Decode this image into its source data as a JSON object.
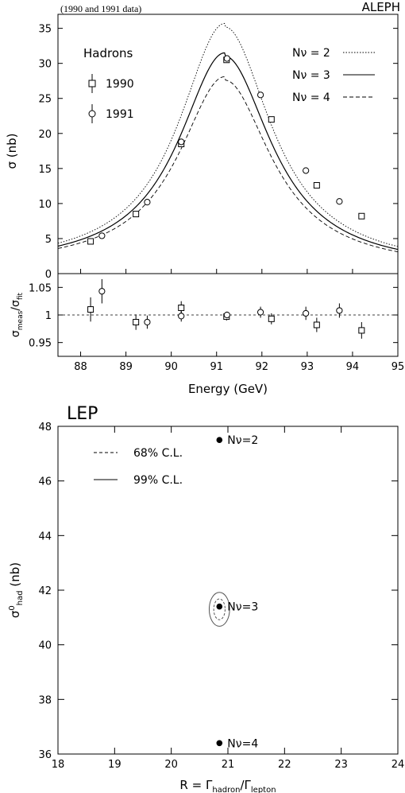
{
  "header": {
    "note": "(1990 and 1991 data)",
    "experiment": "ALEPH"
  },
  "chart_data": [
    {
      "type": "line",
      "panel": "cross-section",
      "experiment_label": "ALEPH",
      "inset_title": "Hadrons",
      "xlabel": "Energy (GeV)",
      "ylabel": "σ (nb)",
      "xlim": [
        87.5,
        95
      ],
      "ylim": [
        0,
        37
      ],
      "yticks": [
        0,
        5,
        10,
        15,
        20,
        25,
        30,
        35
      ],
      "xticks": [
        88,
        89,
        90,
        91,
        92,
        93,
        94,
        95
      ],
      "curves": [
        {
          "name": "Nν = 2",
          "style": "dotted",
          "peak": 34.8
        },
        {
          "name": "Nν = 3",
          "style": "solid",
          "peak": 30.6
        },
        {
          "name": "Nν = 4",
          "style": "dashed",
          "peak": 27.2
        }
      ],
      "series": [
        {
          "name": "1990",
          "marker": "square",
          "points": [
            {
              "x": 88.22,
              "y": 4.6
            },
            {
              "x": 89.22,
              "y": 8.5
            },
            {
              "x": 90.22,
              "y": 18.5
            },
            {
              "x": 91.22,
              "y": 30.5
            },
            {
              "x": 92.21,
              "y": 22.0
            },
            {
              "x": 93.21,
              "y": 12.6
            },
            {
              "x": 94.2,
              "y": 8.2
            }
          ]
        },
        {
          "name": "1991",
          "marker": "circle",
          "points": [
            {
              "x": 88.47,
              "y": 5.4
            },
            {
              "x": 89.47,
              "y": 10.2
            },
            {
              "x": 90.22,
              "y": 18.8
            },
            {
              "x": 91.23,
              "y": 30.7
            },
            {
              "x": 91.97,
              "y": 25.5
            },
            {
              "x": 92.97,
              "y": 14.7
            },
            {
              "x": 93.71,
              "y": 10.3
            }
          ]
        }
      ]
    },
    {
      "type": "scatter",
      "panel": "ratio",
      "ylabel": "σmeas/σfit",
      "xlabel": "Energy (GeV)",
      "xlim": [
        87.5,
        95
      ],
      "ylim": [
        0.925,
        1.075
      ],
      "yticks": [
        0.95,
        1,
        1.05
      ],
      "ytick_labels": [
        "0.95",
        "1",
        "1.05"
      ],
      "xticks": [
        88,
        89,
        90,
        91,
        92,
        93,
        94,
        95
      ],
      "reference_line": 1,
      "series": [
        {
          "name": "1990",
          "marker": "square",
          "points": [
            {
              "x": 88.22,
              "y": 1.01,
              "err": 0.022
            },
            {
              "x": 89.22,
              "y": 0.987,
              "err": 0.014
            },
            {
              "x": 90.22,
              "y": 1.013,
              "err": 0.012
            },
            {
              "x": 91.22,
              "y": 0.997,
              "err": 0.007
            },
            {
              "x": 92.21,
              "y": 0.993,
              "err": 0.01
            },
            {
              "x": 93.21,
              "y": 0.982,
              "err": 0.013
            },
            {
              "x": 94.2,
              "y": 0.972,
              "err": 0.015
            }
          ]
        },
        {
          "name": "1991",
          "marker": "circle",
          "points": [
            {
              "x": 88.47,
              "y": 1.043,
              "err": 0.022
            },
            {
              "x": 89.47,
              "y": 0.987,
              "err": 0.012
            },
            {
              "x": 90.22,
              "y": 0.998,
              "err": 0.01
            },
            {
              "x": 91.23,
              "y": 1.0,
              "err": 0.006
            },
            {
              "x": 91.97,
              "y": 1.005,
              "err": 0.01
            },
            {
              "x": 92.97,
              "y": 1.003,
              "err": 0.012
            },
            {
              "x": 93.71,
              "y": 1.008,
              "err": 0.013
            }
          ]
        }
      ]
    },
    {
      "type": "scatter",
      "panel": "LEP contour",
      "title": "LEP",
      "xlabel": "R = Γhadron/Γlepton",
      "ylabel": "σ0had (nb)",
      "xlim": [
        18,
        24
      ],
      "ylim": [
        36,
        48
      ],
      "xticks": [
        18,
        19,
        20,
        21,
        22,
        23,
        24
      ],
      "yticks": [
        36,
        38,
        40,
        42,
        44,
        46,
        48
      ],
      "legend": [
        {
          "name": "68% C.L.",
          "style": "dashed"
        },
        {
          "name": "99% C.L.",
          "style": "solid"
        }
      ],
      "points": [
        {
          "x": 20.85,
          "y": 47.5,
          "label": "Nν=2"
        },
        {
          "x": 20.85,
          "y": 41.4,
          "label": "Nν=3"
        },
        {
          "x": 20.85,
          "y": 36.4,
          "label": "Nν=4"
        }
      ],
      "contours": [
        {
          "name": "68% C.L.",
          "cx": 20.85,
          "cy": 41.3,
          "rx": 0.1,
          "ry": 0.38,
          "style": "dashed"
        },
        {
          "name": "99% C.L.",
          "cx": 20.85,
          "cy": 41.3,
          "rx": 0.18,
          "ry": 0.62,
          "style": "solid"
        }
      ]
    }
  ]
}
